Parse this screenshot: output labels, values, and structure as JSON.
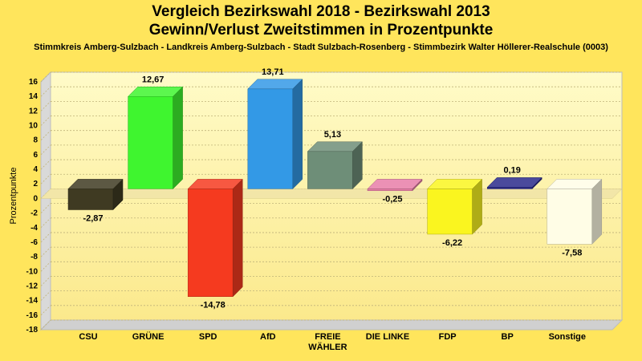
{
  "chart_data": {
    "type": "bar",
    "title": "Vergleich Bezirkswahl 2018 - Bezirkswahl 2013",
    "subtitle": "Gewinn/Verlust Zweitstimmen in Prozentpunkte",
    "caption": "Stimmkreis Amberg-Sulzbach - Landkreis Amberg-Sulzbach - Stadt Sulzbach-Rosenberg - Stimmbezirk Walter Höllerer-Realschule (0003)",
    "ylabel": "Prozentpunkte",
    "xlabel": "",
    "ylim": [
      -18,
      16
    ],
    "yticks": [
      16,
      14,
      12,
      10,
      8,
      6,
      4,
      2,
      0,
      -2,
      -4,
      -6,
      -8,
      -10,
      -12,
      -14,
      -16,
      -18
    ],
    "grid": true,
    "categories": [
      {
        "name": "CSU",
        "label_lines": [
          "CSU"
        ]
      },
      {
        "name": "GRÜNE",
        "label_lines": [
          "GRÜNE"
        ]
      },
      {
        "name": "SPD",
        "label_lines": [
          "SPD"
        ]
      },
      {
        "name": "AfD",
        "label_lines": [
          "AfD"
        ]
      },
      {
        "name": "FREIE WÄHLER",
        "label_lines": [
          "FREIE",
          "WÄHLER"
        ]
      },
      {
        "name": "DIE LINKE",
        "label_lines": [
          "DIE LINKE"
        ]
      },
      {
        "name": "FDP",
        "label_lines": [
          "FDP"
        ]
      },
      {
        "name": "BP",
        "label_lines": [
          "BP"
        ]
      },
      {
        "name": "Sonstige",
        "label_lines": [
          "Sonstige"
        ]
      }
    ],
    "values": [
      -2.87,
      12.67,
      -14.78,
      13.71,
      5.13,
      -0.25,
      -6.22,
      0.19,
      -7.58
    ],
    "value_labels": [
      "-2,87",
      "12,67",
      "-14,78",
      "13,71",
      "5,13",
      "-0,25",
      "-6,22",
      "0,19",
      "-7,58"
    ],
    "colors": [
      "#3F3A22",
      "#3FF52F",
      "#F53A1F",
      "#3399E6",
      "#6E8E78",
      "#E87EA8",
      "#FAF51F",
      "#2A2A8A",
      "#FFFDE6"
    ],
    "background": "#FFE55C"
  }
}
